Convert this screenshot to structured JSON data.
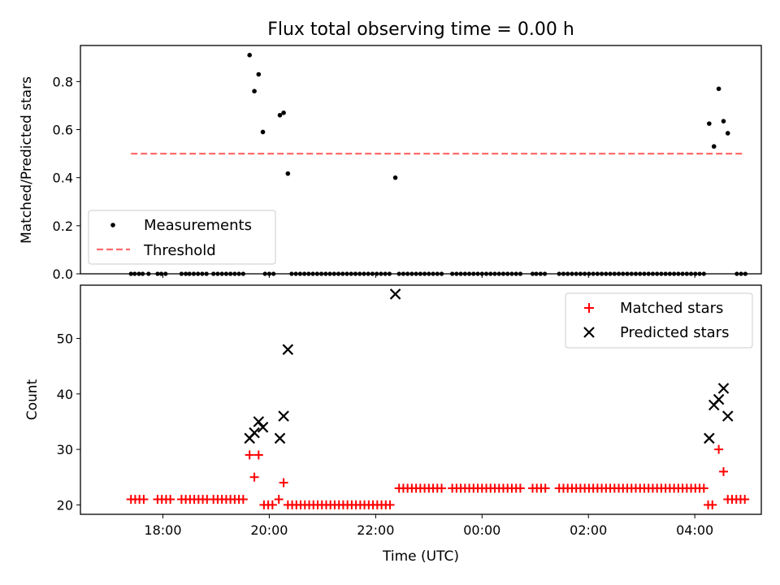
{
  "chart_data": [
    {
      "type": "scatter",
      "title": "Flux total observing time = 0.00 h",
      "xlabel": "",
      "ylabel": "Matched/Predicted stars",
      "xlim": [
        16.45,
        29.25
      ],
      "ylim": [
        0,
        0.95
      ],
      "yticks": [
        0.0,
        0.2,
        0.4,
        0.6,
        0.8
      ],
      "ytick_labels": [
        "0.0",
        "0.2",
        "0.4",
        "0.6",
        "0.8"
      ],
      "legend": {
        "position": "lower-left",
        "entries": [
          "Measurements",
          "Threshold"
        ]
      },
      "series": [
        {
          "name": "Measurements",
          "color": "#000000",
          "points": [
            {
              "x": 19.63,
              "y": 0.91
            },
            {
              "x": 19.72,
              "y": 0.76
            },
            {
              "x": 19.8,
              "y": 0.83
            },
            {
              "x": 19.88,
              "y": 0.59
            },
            {
              "x": 20.2,
              "y": 0.66
            },
            {
              "x": 20.27,
              "y": 0.67
            },
            {
              "x": 20.35,
              "y": 0.417
            },
            {
              "x": 22.37,
              "y": 0.4
            },
            {
              "x": 28.27,
              "y": 0.625
            },
            {
              "x": 28.36,
              "y": 0.53
            },
            {
              "x": 28.45,
              "y": 0.77
            },
            {
              "x": 28.54,
              "y": 0.635
            },
            {
              "x": 28.62,
              "y": 0.585
            }
          ],
          "zero_points_x": [
            17.4,
            17.47,
            17.55,
            17.62,
            17.73,
            17.9,
            17.97,
            18.05,
            18.35,
            18.43,
            18.5,
            18.58,
            18.66,
            18.74,
            18.82,
            18.95,
            19.03,
            19.11,
            19.19,
            19.27,
            19.35,
            19.43,
            19.51,
            19.92,
            20.0,
            20.08,
            20.42,
            20.5,
            20.58,
            20.66,
            20.74,
            20.82,
            20.9,
            20.98,
            21.06,
            21.14,
            21.22,
            21.3,
            21.38,
            21.46,
            21.54,
            21.62,
            21.7,
            21.78,
            21.86,
            21.94,
            22.02,
            22.1,
            22.18,
            22.26,
            22.44,
            22.52,
            22.6,
            22.68,
            22.76,
            22.84,
            22.92,
            23.0,
            23.08,
            23.16,
            23.24,
            23.44,
            23.52,
            23.6,
            23.68,
            23.76,
            23.84,
            23.92,
            24.0,
            24.08,
            24.16,
            24.24,
            24.32,
            24.4,
            24.48,
            24.56,
            24.64,
            24.72,
            24.95,
            25.02,
            25.1,
            25.18,
            25.45,
            25.53,
            25.61,
            25.69,
            25.77,
            25.85,
            25.93,
            26.01,
            26.09,
            26.17,
            26.25,
            26.33,
            26.41,
            26.49,
            26.57,
            26.65,
            26.73,
            26.81,
            26.89,
            26.97,
            27.05,
            27.13,
            27.21,
            27.29,
            27.37,
            27.45,
            27.53,
            27.61,
            27.69,
            27.77,
            27.85,
            27.93,
            28.01,
            28.09,
            28.17,
            28.79,
            28.87,
            28.95
          ]
        },
        {
          "name": "Threshold",
          "color": "#ff6b6b",
          "style": "dashed",
          "x": [
            17.4,
            28.9
          ],
          "y": [
            0.5,
            0.5
          ]
        }
      ]
    },
    {
      "type": "scatter",
      "title": "",
      "xlabel": "Time (UTC)",
      "ylabel": "Count",
      "xlim": [
        16.45,
        29.25
      ],
      "ylim": [
        18.3,
        59.6
      ],
      "yticks": [
        20,
        30,
        40,
        50
      ],
      "ytick_labels": [
        "20",
        "30",
        "40",
        "50"
      ],
      "xticks": [
        18,
        20,
        22,
        24,
        26,
        28
      ],
      "xtick_labels": [
        "18:00",
        "20:00",
        "22:00",
        "00:00",
        "02:00",
        "04:00"
      ],
      "legend": {
        "position": "top-right",
        "entries": [
          "Matched stars",
          "Predicted stars"
        ]
      },
      "series": [
        {
          "name": "Matched stars",
          "color": "#ff0000",
          "marker": "plus",
          "segments": [
            {
              "from": 17.4,
              "to": 17.7,
              "step": 0.08,
              "y": 21
            },
            {
              "from": 17.9,
              "to": 18.15,
              "step": 0.08,
              "y": 21
            },
            {
              "from": 18.35,
              "to": 18.85,
              "step": 0.08,
              "y": 21
            },
            {
              "from": 18.95,
              "to": 19.55,
              "step": 0.08,
              "y": 21
            },
            {
              "from": 19.9,
              "to": 20.1,
              "step": 0.08,
              "y": 20
            },
            {
              "from": 20.35,
              "to": 22.3,
              "step": 0.08,
              "y": 20
            },
            {
              "from": 22.44,
              "to": 23.25,
              "step": 0.08,
              "y": 23
            },
            {
              "from": 23.44,
              "to": 24.75,
              "step": 0.08,
              "y": 23
            },
            {
              "from": 24.95,
              "to": 25.2,
              "step": 0.08,
              "y": 23
            },
            {
              "from": 25.45,
              "to": 28.2,
              "step": 0.08,
              "y": 23
            },
            {
              "from": 28.25,
              "to": 28.4,
              "step": 0.08,
              "y": 20
            },
            {
              "from": 28.62,
              "to": 28.97,
              "step": 0.08,
              "y": 21
            }
          ],
          "points": [
            {
              "x": 19.63,
              "y": 29
            },
            {
              "x": 19.72,
              "y": 25
            },
            {
              "x": 19.8,
              "y": 29
            },
            {
              "x": 20.18,
              "y": 21
            },
            {
              "x": 20.27,
              "y": 24
            },
            {
              "x": 28.45,
              "y": 30
            },
            {
              "x": 28.54,
              "y": 26
            }
          ]
        },
        {
          "name": "Predicted stars",
          "color": "#000000",
          "marker": "x",
          "points": [
            {
              "x": 19.63,
              "y": 32
            },
            {
              "x": 19.72,
              "y": 33
            },
            {
              "x": 19.8,
              "y": 35
            },
            {
              "x": 19.88,
              "y": 34
            },
            {
              "x": 20.2,
              "y": 32
            },
            {
              "x": 20.27,
              "y": 36
            },
            {
              "x": 20.35,
              "y": 48
            },
            {
              "x": 22.37,
              "y": 58
            },
            {
              "x": 28.27,
              "y": 32
            },
            {
              "x": 28.36,
              "y": 38
            },
            {
              "x": 28.45,
              "y": 39
            },
            {
              "x": 28.54,
              "y": 41
            },
            {
              "x": 28.62,
              "y": 36
            }
          ]
        }
      ]
    }
  ]
}
